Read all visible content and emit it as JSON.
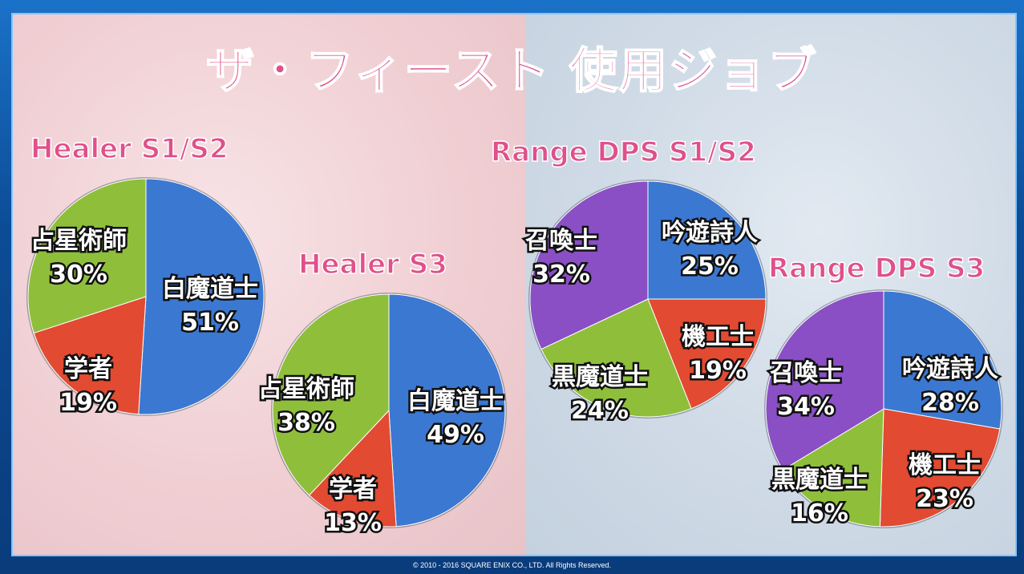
{
  "title": "ザ・フィースト 使用ジョブ",
  "footer": "© 2010 - 2016 SQUARE ENIX CO., LTD. All Rights Reserved.",
  "chart_data": [
    {
      "type": "pie",
      "title": "Healer S1/S2",
      "colors": [
        "#3b78d2",
        "#e24a32",
        "#8fbf3a"
      ],
      "slices": [
        {
          "label": "白魔道士",
          "value": 51,
          "text": "51%"
        },
        {
          "label": "学者",
          "value": 19,
          "text": "19%"
        },
        {
          "label": "占星術師",
          "value": 30,
          "text": "30%"
        }
      ]
    },
    {
      "type": "pie",
      "title": "Healer S3",
      "colors": [
        "#3b78d2",
        "#e24a32",
        "#8fbf3a"
      ],
      "slices": [
        {
          "label": "白魔道士",
          "value": 49,
          "text": "49%"
        },
        {
          "label": "学者",
          "value": 13,
          "text": "13%"
        },
        {
          "label": "占星術師",
          "value": 38,
          "text": "38%"
        }
      ]
    },
    {
      "type": "pie",
      "title": "Range DPS S1/S2",
      "colors": [
        "#3b78d2",
        "#e24a32",
        "#8fbf3a",
        "#8a4fc4"
      ],
      "slices": [
        {
          "label": "吟遊詩人",
          "value": 25,
          "text": "25%"
        },
        {
          "label": "機工士",
          "value": 19,
          "text": "19%"
        },
        {
          "label": "黒魔道士",
          "value": 24,
          "text": "24%"
        },
        {
          "label": "召喚士",
          "value": 32,
          "text": "32%"
        }
      ]
    },
    {
      "type": "pie",
      "title": "Range DPS S3",
      "colors": [
        "#3b78d2",
        "#e24a32",
        "#8fbf3a",
        "#8a4fc4"
      ],
      "slices": [
        {
          "label": "吟遊詩人",
          "value": 28,
          "text": "28%"
        },
        {
          "label": "機工士",
          "value": 23,
          "text": "23%"
        },
        {
          "label": "黒魔道士",
          "value": 16,
          "text": "16%"
        },
        {
          "label": "召喚士",
          "value": 34,
          "text": "34%"
        }
      ]
    }
  ]
}
